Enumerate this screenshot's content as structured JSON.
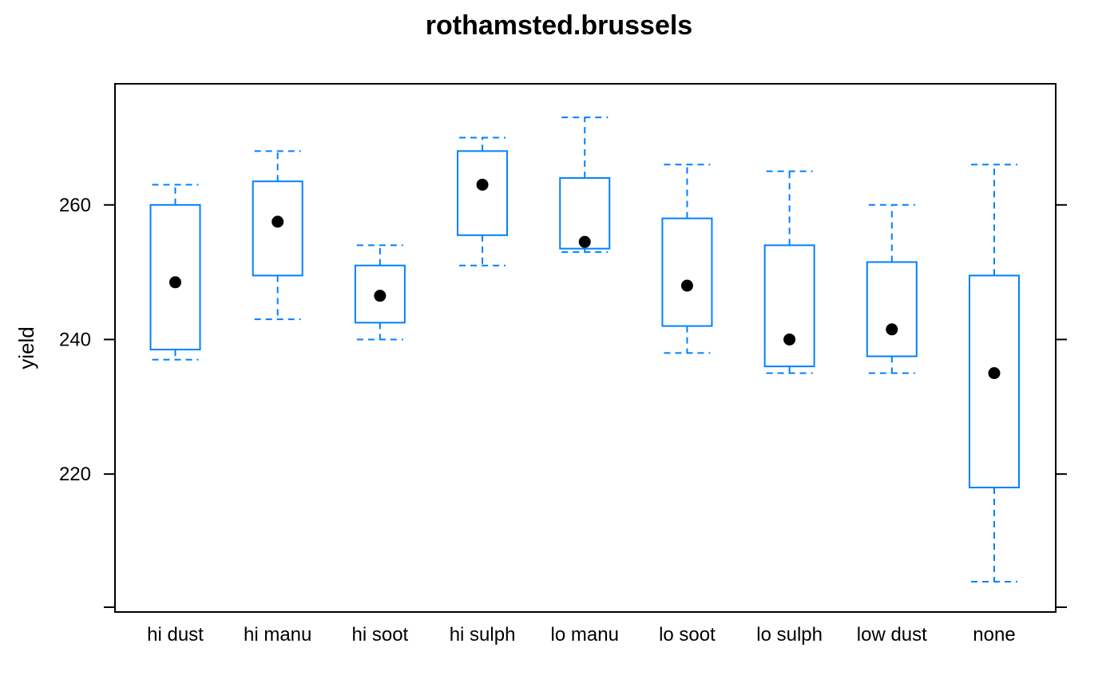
{
  "chart_data": {
    "type": "boxplot",
    "title": "rothamsted.brussels",
    "xlabel": "",
    "ylabel": "yield",
    "ylim": [
      199.5,
      278
    ],
    "yticks": [
      220,
      240,
      260
    ],
    "grid": false,
    "categories": [
      "hi dust",
      "hi manu",
      "hi soot",
      "hi sulph",
      "lo manu",
      "lo soot",
      "lo sulph",
      "low dust",
      "none"
    ],
    "series": [
      {
        "boxes": [
          {
            "whisker_low": 237,
            "q1": 238.5,
            "median": 248.5,
            "q3": 260,
            "whisker_high": 263
          },
          {
            "whisker_low": 243,
            "q1": 249.5,
            "median": 257.5,
            "q3": 263.5,
            "whisker_high": 268
          },
          {
            "whisker_low": 240,
            "q1": 242.5,
            "median": 246.5,
            "q3": 251,
            "whisker_high": 254
          },
          {
            "whisker_low": 251,
            "q1": 255.5,
            "median": 263,
            "q3": 268,
            "whisker_high": 270
          },
          {
            "whisker_low": 253,
            "q1": 253.5,
            "median": 254.5,
            "q3": 264,
            "whisker_high": 273
          },
          {
            "whisker_low": 238,
            "q1": 242,
            "median": 248,
            "q3": 258,
            "whisker_high": 266
          },
          {
            "whisker_low": 235,
            "q1": 236,
            "median": 240,
            "q3": 254,
            "whisker_high": 265
          },
          {
            "whisker_low": 235,
            "q1": 237.5,
            "median": 241.5,
            "q3": 251.5,
            "whisker_high": 260
          },
          {
            "whisker_low": 204,
            "q1": 218,
            "median": 235,
            "q3": 249.5,
            "whisker_high": 266
          }
        ]
      }
    ],
    "colors": {
      "box": "#0080ff",
      "median_dot": "#000000",
      "frame": "#000000"
    }
  }
}
